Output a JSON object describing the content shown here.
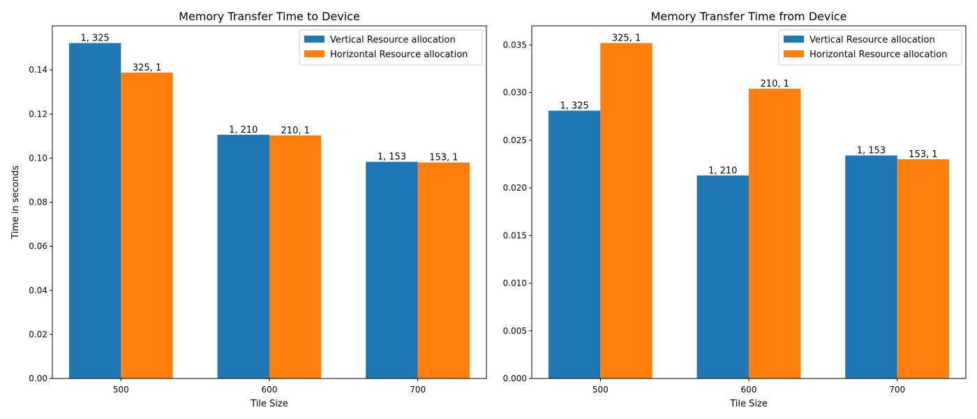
{
  "chart_data": [
    {
      "type": "bar",
      "title": "Memory Transfer Time to Device",
      "xlabel": "Tile Size",
      "ylabel": "Time in seconds",
      "categories": [
        "500",
        "600",
        "700"
      ],
      "ylim": [
        0,
        0.16
      ],
      "yticks": [
        0.0,
        0.02,
        0.04,
        0.06,
        0.08,
        0.1,
        0.12,
        0.14
      ],
      "ytick_labels": [
        "0.00",
        "0.02",
        "0.04",
        "0.06",
        "0.08",
        "0.10",
        "0.12",
        "0.14"
      ],
      "legend_position": "top-right",
      "grid": false,
      "series": [
        {
          "name": "Vertical Resource allocation",
          "color": "#1f77b4",
          "values": [
            0.1522,
            0.1106,
            0.0983
          ],
          "labels": [
            "1, 325",
            "1, 210",
            "1, 153"
          ]
        },
        {
          "name": "Horizontal Resource allocation",
          "color": "#ff7f0e",
          "values": [
            0.1388,
            0.1103,
            0.098
          ],
          "labels": [
            "325, 1",
            "210, 1",
            "153, 1"
          ]
        }
      ]
    },
    {
      "type": "bar",
      "title": "Memory Transfer Time from Device",
      "xlabel": "Tile Size",
      "ylabel": "",
      "categories": [
        "500",
        "600",
        "700"
      ],
      "ylim": [
        0,
        0.037
      ],
      "yticks": [
        0.0,
        0.005,
        0.01,
        0.015,
        0.02,
        0.025,
        0.03,
        0.035
      ],
      "ytick_labels": [
        "0.000",
        "0.005",
        "0.010",
        "0.015",
        "0.020",
        "0.025",
        "0.030",
        "0.035"
      ],
      "legend_position": "top-right",
      "grid": false,
      "series": [
        {
          "name": "Vertical Resource allocation",
          "color": "#1f77b4",
          "values": [
            0.0281,
            0.0213,
            0.0234
          ],
          "labels": [
            "1, 325",
            "1, 210",
            "1, 153"
          ]
        },
        {
          "name": "Horizontal Resource allocation",
          "color": "#ff7f0e",
          "values": [
            0.0352,
            0.0304,
            0.023
          ],
          "labels": [
            "325, 1",
            "210, 1",
            "153, 1"
          ]
        }
      ]
    }
  ]
}
